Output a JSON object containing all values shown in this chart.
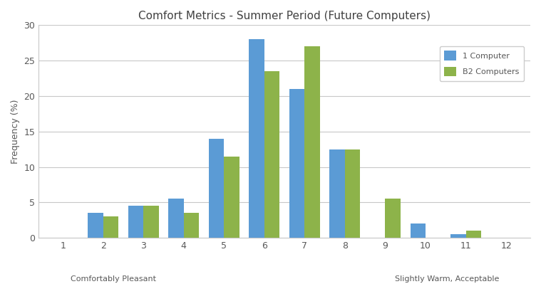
{
  "title": "Comfort Metrics - Summer Period (Future Computers)",
  "xlabel_left": "Comfortably Pleasant",
  "xlabel_right": "Slightly Warm, Acceptable",
  "ylabel": "Frequency (%)",
  "x_labels": [
    "1",
    "2",
    "3",
    "4",
    "5",
    "6",
    "7",
    "8",
    "9",
    "10",
    "11",
    "12"
  ],
  "series1_label": "1 Computer",
  "series2_label": "B2 Computers",
  "series1_color": "#5B9BD5",
  "series2_color": "#8DB34A",
  "series1_values": [
    0,
    3.5,
    4.5,
    5.5,
    14.0,
    28.0,
    21.0,
    12.5,
    0,
    2.0,
    0.5,
    0
  ],
  "series2_values": [
    0,
    3.0,
    4.5,
    3.5,
    11.5,
    23.5,
    27.0,
    12.5,
    5.5,
    0,
    1.0,
    0
  ],
  "ylim": [
    0,
    30
  ],
  "yticks": [
    0,
    5,
    10,
    15,
    20,
    25,
    30
  ],
  "bar_width": 0.38,
  "grid_color": "#C8C8C8",
  "background_color": "#FFFFFF",
  "title_color": "#404040",
  "axis_label_color": "#595959"
}
